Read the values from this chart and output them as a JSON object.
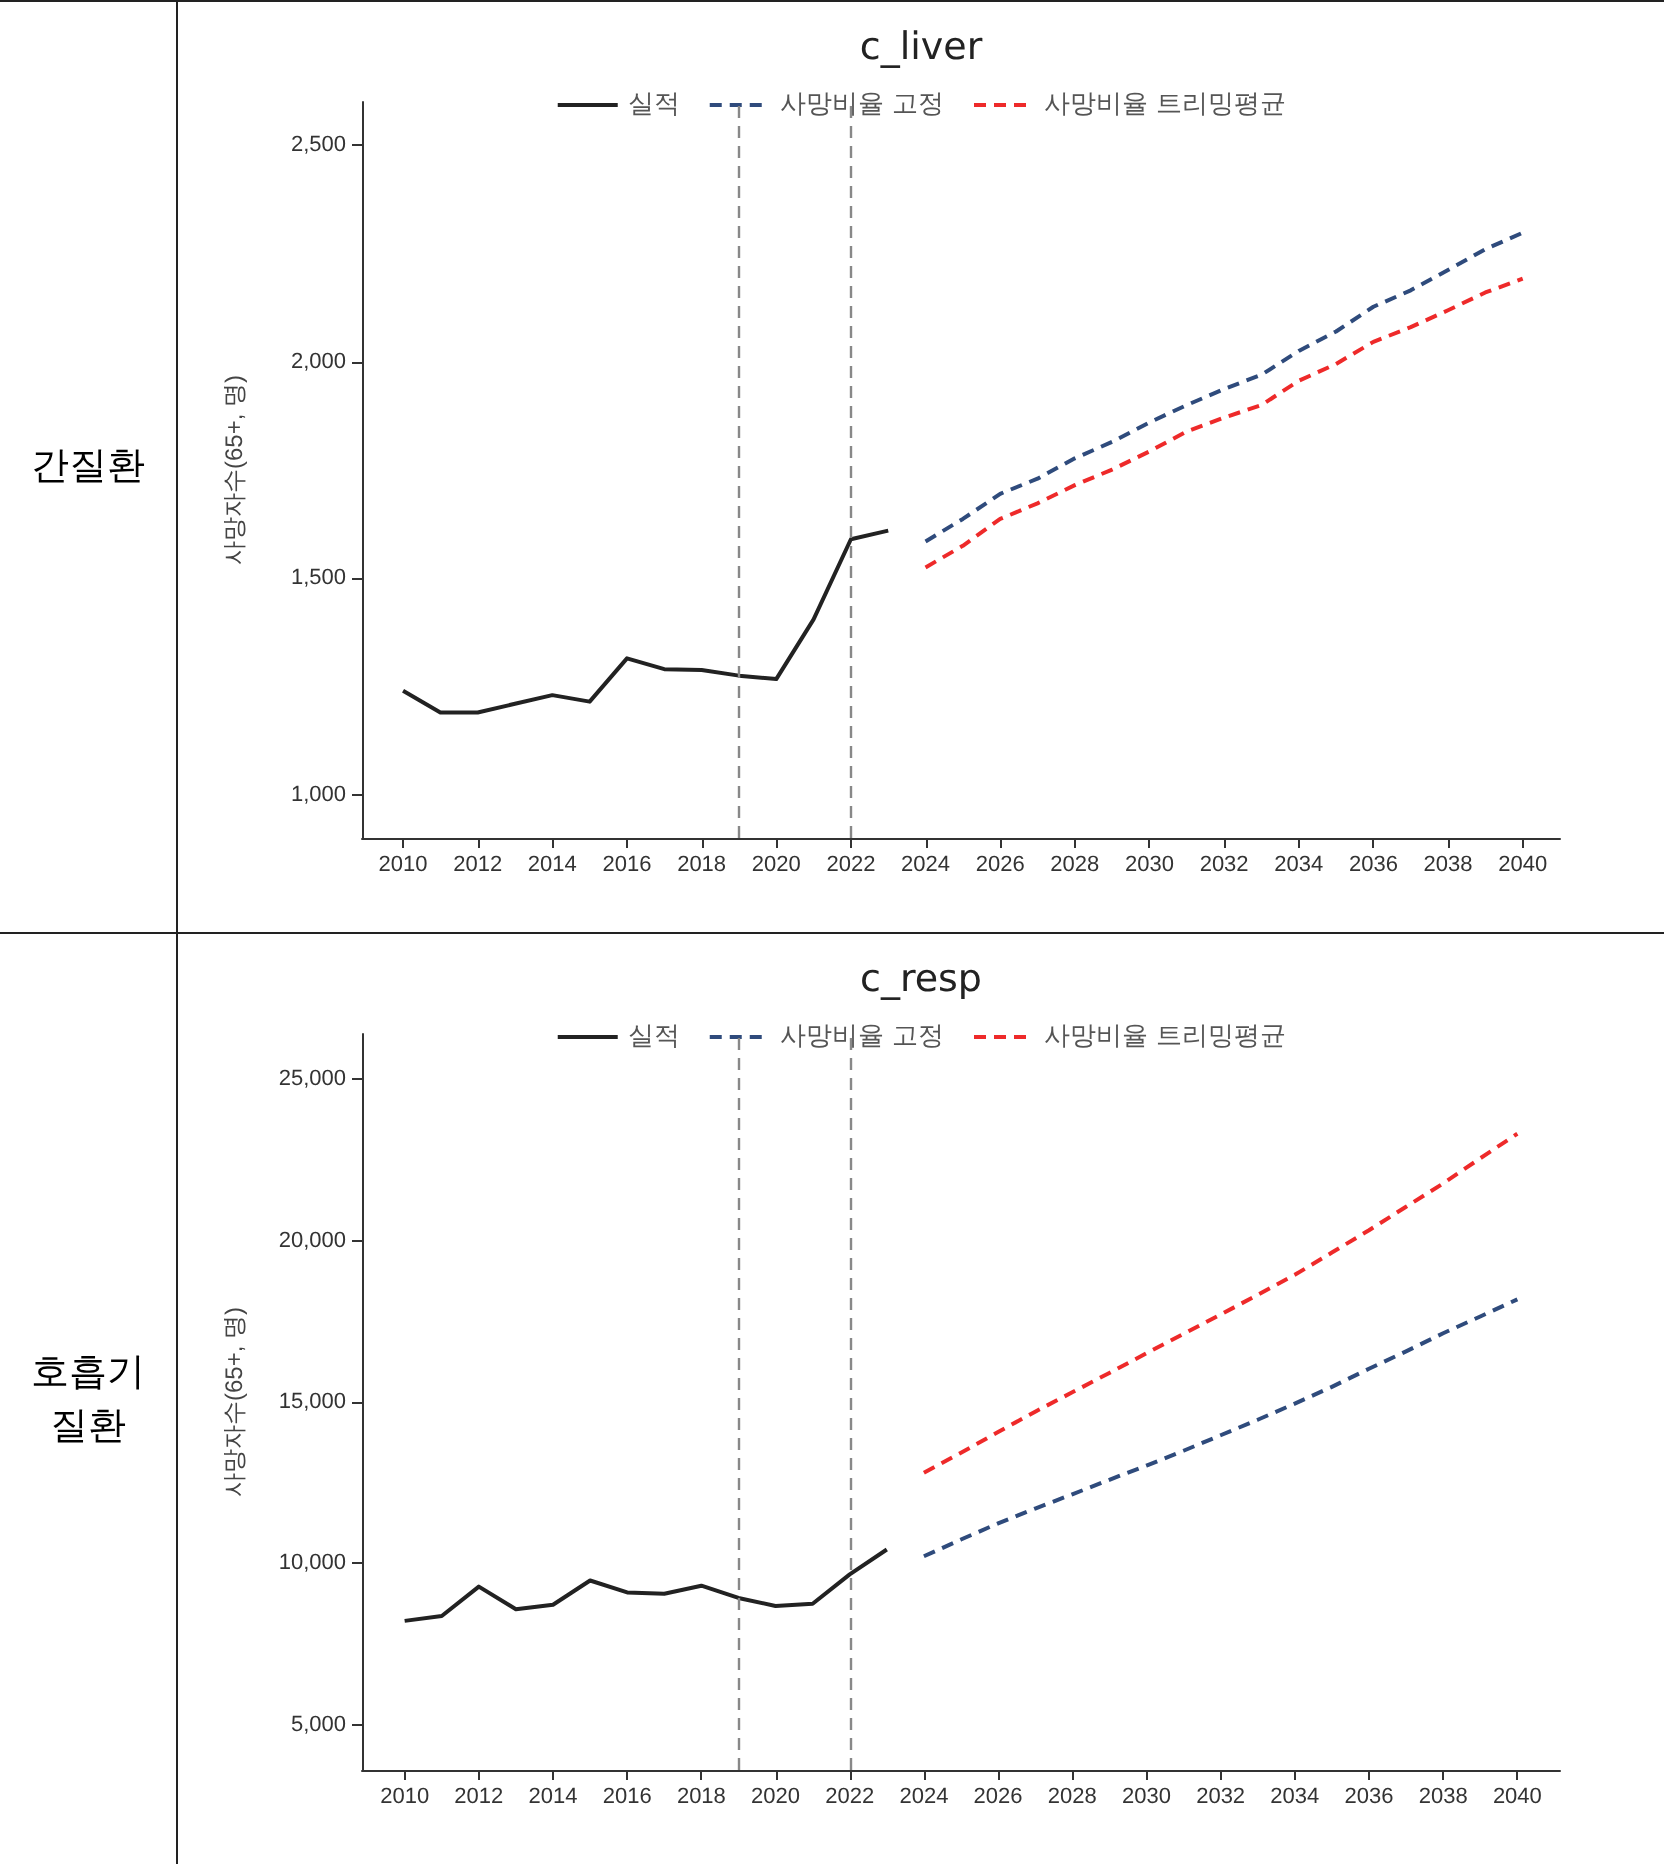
{
  "chart_data": [
    {
      "type": "line",
      "title": "c_liver",
      "ylabel": "사망자수(65+, 명)",
      "annotations": [
        "간질환"
      ],
      "xlim": [
        2008.9,
        2041
      ],
      "xticks": [
        2010,
        2012,
        2014,
        2016,
        2018,
        2020,
        2022,
        2024,
        2026,
        2028,
        2030,
        2032,
        2034,
        2036,
        2038,
        2040
      ],
      "ylim": [
        900,
        2600
      ],
      "yticks": [
        {
          "value": 1000,
          "label": "1,000"
        },
        {
          "value": 1500,
          "label": "1,500"
        },
        {
          "value": 2000,
          "label": "2,000"
        },
        {
          "value": 2500,
          "label": "2,500"
        }
      ],
      "grid": false,
      "legend": "top",
      "marker": "none",
      "ref_lines": [
        {
          "axis": "x",
          "value": 2019,
          "color": "#888888",
          "line_style": "dashed"
        },
        {
          "axis": "x",
          "value": 2022,
          "color": "#888888",
          "line_style": "dashed"
        }
      ],
      "series": [
        {
          "name": "실적",
          "color": "#222222",
          "line_style": "solid",
          "x": [
            2010,
            2011,
            2012,
            2013,
            2014,
            2015,
            2016,
            2017,
            2018,
            2019,
            2020,
            2021,
            2022,
            2023
          ],
          "values": [
            1240,
            1190,
            1190,
            1210,
            1230,
            1215,
            1315,
            1290,
            1288,
            1275,
            1267,
            1405,
            1590,
            1610
          ]
        },
        {
          "name": "사망비율 고정",
          "color": "#2f4b7c",
          "line_style": "dashed",
          "x": [
            2024,
            2025,
            2026,
            2027,
            2028,
            2029,
            2030,
            2031,
            2032,
            2033,
            2034,
            2035,
            2036,
            2037,
            2038,
            2039,
            2040
          ],
          "values": [
            1585,
            1637,
            1695,
            1730,
            1777,
            1815,
            1860,
            1900,
            1937,
            1970,
            2025,
            2070,
            2127,
            2165,
            2212,
            2260,
            2298
          ]
        },
        {
          "name": "사망비율 트리밍평균",
          "color": "#ee2a2a",
          "line_style": "dashed",
          "x": [
            2024,
            2025,
            2026,
            2027,
            2028,
            2029,
            2030,
            2031,
            2032,
            2033,
            2034,
            2035,
            2036,
            2037,
            2038,
            2039,
            2040
          ],
          "values": [
            1525,
            1575,
            1637,
            1673,
            1715,
            1751,
            1793,
            1839,
            1871,
            1900,
            1956,
            1995,
            2046,
            2080,
            2119,
            2160,
            2192
          ]
        }
      ]
    },
    {
      "type": "line",
      "title": "c_resp",
      "ylabel": "사망자수(65+, 명)",
      "annotations": [
        "호흡기\n질환"
      ],
      "xlim": [
        2008.85,
        2041.15
      ],
      "xticks": [
        2010,
        2012,
        2014,
        2016,
        2018,
        2020,
        2022,
        2024,
        2026,
        2028,
        2030,
        2032,
        2034,
        2036,
        2038,
        2040
      ],
      "ylim": [
        3600,
        26400
      ],
      "yticks": [
        {
          "value": 5000,
          "label": "5,000"
        },
        {
          "value": 10000,
          "label": "10,000"
        },
        {
          "value": 15000,
          "label": "15,000"
        },
        {
          "value": 20000,
          "label": "20,000"
        },
        {
          "value": 25000,
          "label": "25,000"
        }
      ],
      "grid": false,
      "legend": "top",
      "marker": "none",
      "ref_lines": [
        {
          "axis": "x",
          "value": 2019,
          "color": "#888888",
          "line_style": "dashed"
        },
        {
          "axis": "x",
          "value": 2022,
          "color": "#888888",
          "line_style": "dashed"
        }
      ],
      "series": [
        {
          "name": "실적",
          "color": "#222222",
          "line_style": "solid",
          "x": [
            2010,
            2011,
            2012,
            2013,
            2014,
            2015,
            2016,
            2017,
            2018,
            2019,
            2020,
            2021,
            2022,
            2023
          ],
          "values": [
            8220,
            8370,
            9280,
            8580,
            8720,
            9470,
            9100,
            9060,
            9310,
            8930,
            8680,
            8750,
            9660,
            10430
          ]
        },
        {
          "name": "사망비율 고정",
          "color": "#2f4b7c",
          "line_style": "dashed",
          "x": [
            2024,
            2025,
            2026,
            2027,
            2028,
            2029,
            2030,
            2031,
            2032,
            2033,
            2034,
            2035,
            2036,
            2037,
            2038,
            2039,
            2040
          ],
          "values": [
            10220,
            10740,
            11240,
            11700,
            12140,
            12590,
            13030,
            13490,
            13970,
            14450,
            14950,
            15470,
            16030,
            16570,
            17130,
            17650,
            18180
          ]
        },
        {
          "name": "사망비율 트리밍평균",
          "color": "#ee2a2a",
          "line_style": "dashed",
          "x": [
            2024,
            2025,
            2026,
            2027,
            2028,
            2029,
            2030,
            2031,
            2032,
            2033,
            2034,
            2035,
            2036,
            2037,
            2038,
            2039,
            2040
          ],
          "values": [
            12810,
            13430,
            14070,
            14700,
            15300,
            15900,
            16510,
            17110,
            17710,
            18320,
            18940,
            19630,
            20320,
            21050,
            21770,
            22550,
            23310
          ]
        }
      ]
    }
  ]
}
